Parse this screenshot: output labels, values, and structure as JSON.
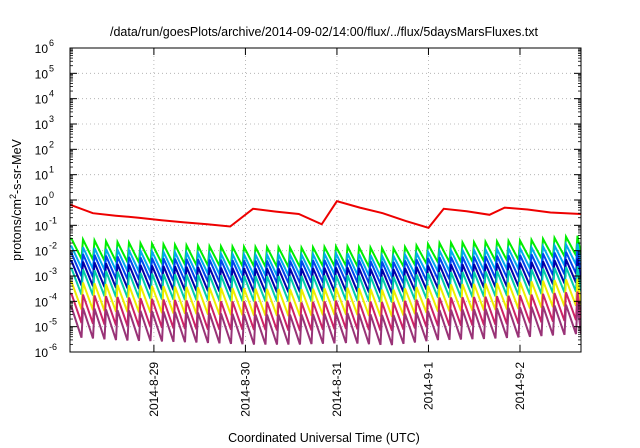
{
  "chart_data": {
    "type": "line",
    "title": "/data/run/goesPlots/archive/2014-09-02/14:00/flux/../flux/5daysMarsFluxes.txt",
    "xlabel": "Coordinated Universal Time (UTC)",
    "ylabel": "protons/cm2-s-sr-MeV",
    "ylabel_base": "protons/cm",
    "ylabel_sup": "2",
    "ylabel_rest": "-s-sr-MeV",
    "y_scale": "log",
    "ylim": [
      1e-06,
      1000000.0
    ],
    "y_tick_exponents": [
      -6,
      -5,
      -4,
      -3,
      -2,
      -1,
      0,
      1,
      2,
      3,
      4,
      5,
      6
    ],
    "xlim": [
      "2014-08-28T02:00",
      "2014-09-02T16:00"
    ],
    "x_ticks": [
      {
        "label": "2014-8-29",
        "date": "2014-08-29T00:00"
      },
      {
        "label": "2014-8-30",
        "date": "2014-08-30T00:00"
      },
      {
        "label": "2014-8-31",
        "date": "2014-08-31T00:00"
      },
      {
        "label": "2014-9-1",
        "date": "2014-09-01T00:00"
      },
      {
        "label": "2014-9-2",
        "date": "2014-09-02T00:00"
      }
    ],
    "grid": true,
    "legend": "none",
    "series": [
      {
        "color": "#ee0000",
        "values": [
          [
            "2014-08-28T02:00",
            0.65
          ],
          [
            "2014-08-28T08:00",
            0.3
          ],
          [
            "2014-08-28T14:00",
            0.24
          ],
          [
            "2014-08-28T20:00",
            0.2
          ],
          [
            "2014-08-29T02:00",
            0.16
          ],
          [
            "2014-08-29T08:00",
            0.13
          ],
          [
            "2014-08-29T14:00",
            0.11
          ],
          [
            "2014-08-29T20:00",
            0.09
          ],
          [
            "2014-08-30T02:00",
            0.45
          ],
          [
            "2014-08-30T08:00",
            0.35
          ],
          [
            "2014-08-30T14:00",
            0.28
          ],
          [
            "2014-08-30T20:00",
            0.11
          ],
          [
            "2014-08-31T00:00",
            0.9
          ],
          [
            "2014-08-31T06:00",
            0.5
          ],
          [
            "2014-08-31T12:00",
            0.3
          ],
          [
            "2014-08-31T18:00",
            0.15
          ],
          [
            "2014-09-01T00:00",
            0.08
          ],
          [
            "2014-09-01T04:00",
            0.45
          ],
          [
            "2014-09-01T10:00",
            0.36
          ],
          [
            "2014-09-01T16:00",
            0.26
          ],
          [
            "2014-09-01T20:00",
            0.5
          ],
          [
            "2014-09-02T02:00",
            0.42
          ],
          [
            "2014-09-02T08:00",
            0.32
          ],
          [
            "2014-09-02T16:00",
            0.28
          ]
        ]
      },
      {
        "color": "#00ee00",
        "values": [
          [
            "2014-08-28T02:00",
            0.03
          ],
          [
            "2014-08-28T14:00",
            0.022
          ],
          [
            "2014-08-29T02:00",
            0.018
          ],
          [
            "2014-08-29T14:00",
            0.015
          ],
          [
            "2014-08-30T02:00",
            0.014
          ],
          [
            "2014-08-30T14:00",
            0.013
          ],
          [
            "2014-08-31T02:00",
            0.015
          ],
          [
            "2014-08-31T14:00",
            0.012
          ],
          [
            "2014-09-01T02:00",
            0.02
          ],
          [
            "2014-09-01T14:00",
            0.022
          ],
          [
            "2014-09-02T02:00",
            0.026
          ],
          [
            "2014-09-02T16:00",
            0.04
          ]
        ]
      },
      {
        "color": "#00aaee",
        "values": [
          [
            "2014-08-28T02:00",
            0.015
          ],
          [
            "2014-08-28T14:00",
            0.011
          ],
          [
            "2014-08-29T02:00",
            0.009
          ],
          [
            "2014-08-29T14:00",
            0.008
          ],
          [
            "2014-08-30T02:00",
            0.007
          ],
          [
            "2014-08-30T14:00",
            0.007
          ],
          [
            "2014-08-31T02:00",
            0.008
          ],
          [
            "2014-08-31T14:00",
            0.006
          ],
          [
            "2014-09-01T02:00",
            0.01
          ],
          [
            "2014-09-01T14:00",
            0.011
          ],
          [
            "2014-09-02T02:00",
            0.013
          ],
          [
            "2014-09-02T16:00",
            0.02
          ]
        ]
      },
      {
        "color": "#0044ee",
        "values": [
          [
            "2014-08-28T02:00",
            0.008
          ],
          [
            "2014-08-28T14:00",
            0.006
          ],
          [
            "2014-08-29T02:00",
            0.005
          ],
          [
            "2014-08-29T14:00",
            0.0045
          ],
          [
            "2014-08-30T02:00",
            0.004
          ],
          [
            "2014-08-30T14:00",
            0.004
          ],
          [
            "2014-08-31T02:00",
            0.0045
          ],
          [
            "2014-08-31T14:00",
            0.0035
          ],
          [
            "2014-09-01T02:00",
            0.0055
          ],
          [
            "2014-09-01T14:00",
            0.006
          ],
          [
            "2014-09-02T02:00",
            0.007
          ],
          [
            "2014-09-02T16:00",
            0.01
          ]
        ]
      },
      {
        "color": "#0000aa",
        "values": [
          [
            "2014-08-28T02:00",
            0.004
          ],
          [
            "2014-08-28T14:00",
            0.003
          ],
          [
            "2014-08-29T02:00",
            0.0025
          ],
          [
            "2014-08-29T14:00",
            0.0022
          ],
          [
            "2014-08-30T02:00",
            0.002
          ],
          [
            "2014-08-30T14:00",
            0.002
          ],
          [
            "2014-08-31T02:00",
            0.0022
          ],
          [
            "2014-08-31T14:00",
            0.0018
          ],
          [
            "2014-09-01T02:00",
            0.0028
          ],
          [
            "2014-09-01T14:00",
            0.003
          ],
          [
            "2014-09-02T02:00",
            0.0035
          ],
          [
            "2014-09-02T16:00",
            0.005
          ]
        ]
      },
      {
        "color": "#00ccaa",
        "values": [
          [
            "2014-08-28T02:00",
            0.002
          ],
          [
            "2014-08-28T14:00",
            0.0015
          ],
          [
            "2014-08-29T02:00",
            0.0012
          ],
          [
            "2014-08-29T14:00",
            0.0011
          ],
          [
            "2014-08-30T02:00",
            0.001
          ],
          [
            "2014-08-30T14:00",
            0.001
          ],
          [
            "2014-08-31T02:00",
            0.0011
          ],
          [
            "2014-08-31T14:00",
            0.0009
          ],
          [
            "2014-09-01T02:00",
            0.0014
          ],
          [
            "2014-09-01T14:00",
            0.0015
          ],
          [
            "2014-09-02T02:00",
            0.0018
          ],
          [
            "2014-09-02T16:00",
            0.0025
          ]
        ]
      },
      {
        "color": "#eeee00",
        "values": [
          [
            "2014-08-28T02:00",
            0.0006
          ],
          [
            "2014-08-28T14:00",
            0.00045
          ],
          [
            "2014-08-29T02:00",
            0.0004
          ],
          [
            "2014-08-29T14:00",
            0.00035
          ],
          [
            "2014-08-30T02:00",
            0.00032
          ],
          [
            "2014-08-30T14:00",
            0.0003
          ],
          [
            "2014-08-31T02:00",
            0.00035
          ],
          [
            "2014-08-31T14:00",
            0.00028
          ],
          [
            "2014-09-01T02:00",
            0.00045
          ],
          [
            "2014-09-01T14:00",
            0.0005
          ],
          [
            "2014-09-02T02:00",
            0.0006
          ],
          [
            "2014-09-02T16:00",
            0.0008
          ]
        ]
      },
      {
        "color": "#cc2266",
        "values": [
          [
            "2014-08-28T02:00",
            0.0002
          ],
          [
            "2014-08-28T14:00",
            0.00015
          ],
          [
            "2014-08-29T02:00",
            0.00012
          ],
          [
            "2014-08-29T14:00",
            0.0001
          ],
          [
            "2014-08-30T02:00",
            0.0001
          ],
          [
            "2014-08-30T14:00",
            9e-05
          ],
          [
            "2014-08-31T02:00",
            0.00011
          ],
          [
            "2014-08-31T14:00",
            9e-05
          ],
          [
            "2014-09-01T02:00",
            0.00014
          ],
          [
            "2014-09-01T14:00",
            0.00015
          ],
          [
            "2014-09-02T02:00",
            0.00018
          ],
          [
            "2014-09-02T16:00",
            0.00025
          ]
        ]
      },
      {
        "color": "#993377",
        "values": [
          [
            "2014-08-28T02:00",
            6e-05
          ],
          [
            "2014-08-28T14:00",
            4.5e-05
          ],
          [
            "2014-08-29T02:00",
            4e-05
          ],
          [
            "2014-08-29T14:00",
            3.5e-05
          ],
          [
            "2014-08-30T02:00",
            3e-05
          ],
          [
            "2014-08-30T14:00",
            3e-05
          ],
          [
            "2014-08-31T02:00",
            3.5e-05
          ],
          [
            "2014-08-31T14:00",
            2.8e-05
          ],
          [
            "2014-09-01T02:00",
            4.5e-05
          ],
          [
            "2014-09-01T14:00",
            5e-05
          ],
          [
            "2014-09-02T02:00",
            6e-05
          ],
          [
            "2014-09-02T16:00",
            8e-05
          ]
        ]
      }
    ]
  }
}
